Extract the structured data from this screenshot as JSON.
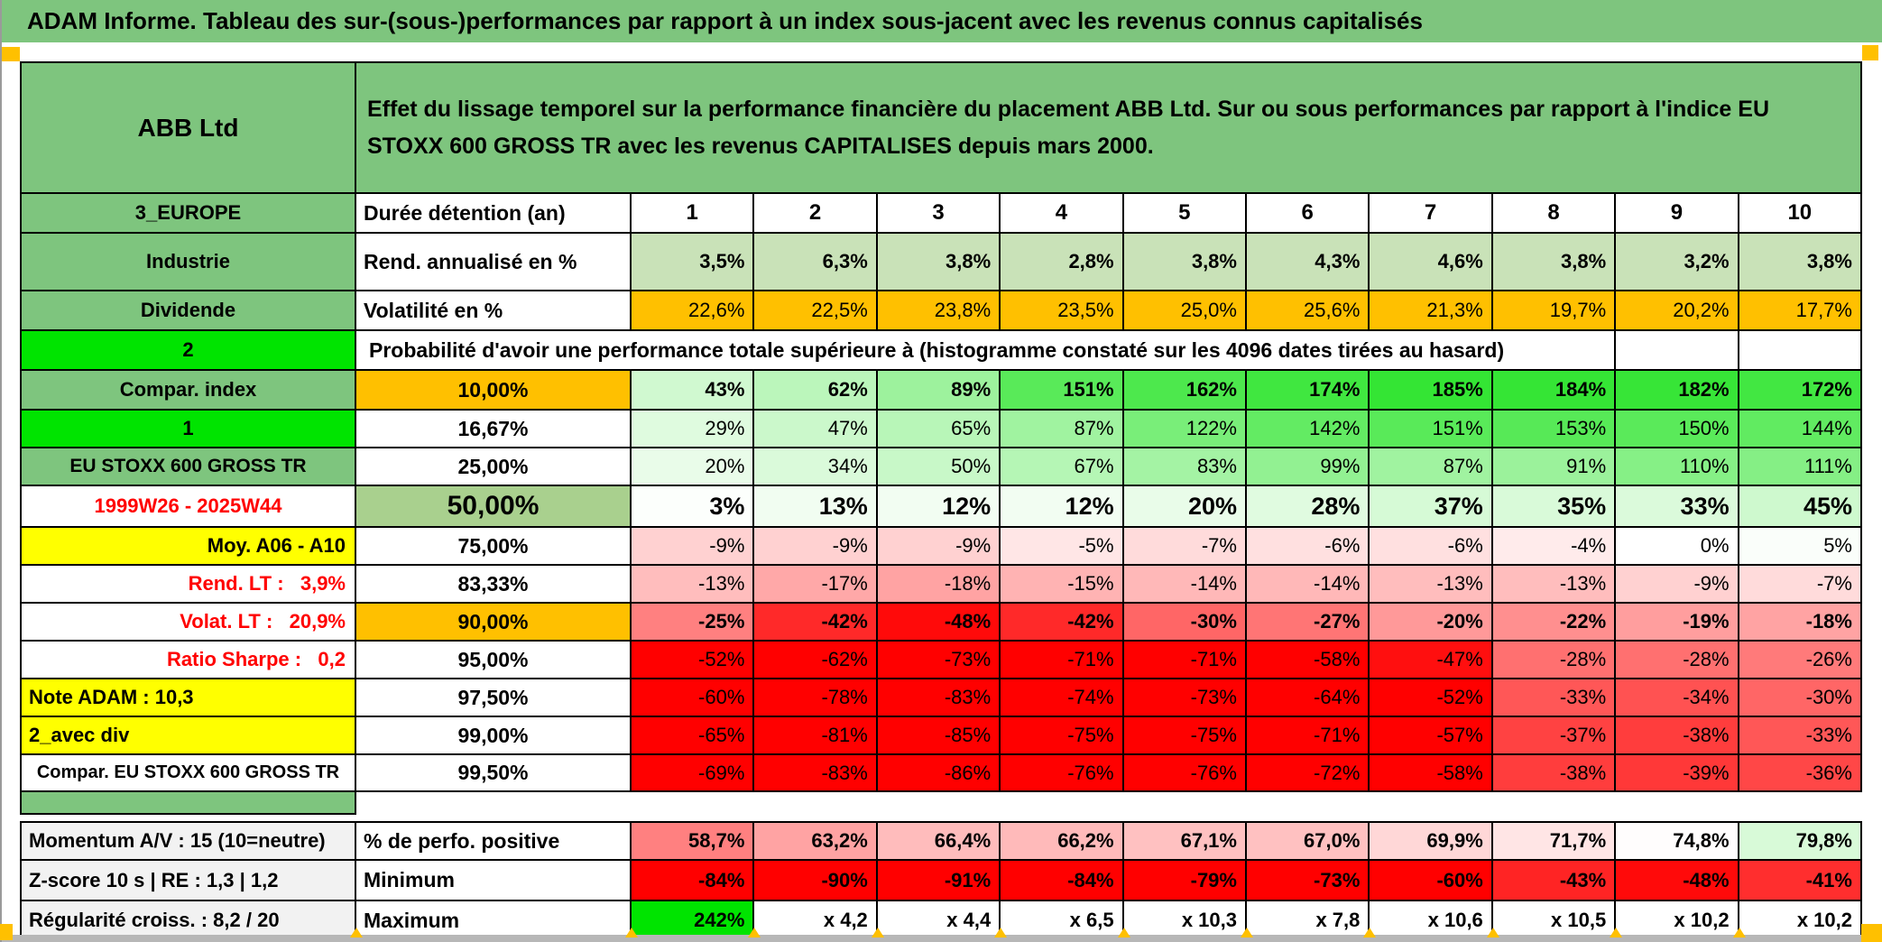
{
  "title": "ADAM Informe. Tableau des sur-(sous-)performances par rapport à un index sous-jacent avec les revenus connus capitalisés",
  "header": {
    "company": "ABB Ltd",
    "description": "Effet du lissage temporel sur la performance financière du placement ABB Ltd. Sur ou sous performances par rapport à l'indice EU STOXX 600 GROSS TR avec les revenus CAPITALISES depuis mars 2000."
  },
  "colors": {
    "title_bar": "#7ec57e",
    "header_green": "#7ec57e",
    "bright_green": "#00e400",
    "orange": "#ffc000",
    "yellow": "#ffff00",
    "sage_green": "#a9d08e",
    "light_green_row": "#c9e2b8",
    "red_text": "#ff0000",
    "gray_label": "#f2f2f2",
    "full_red": "#ff0000",
    "full_green": "#35e135"
  },
  "table": {
    "columns": [
      "1",
      "2",
      "3",
      "4",
      "5",
      "6",
      "7",
      "8",
      "9",
      "10"
    ],
    "rows": [
      {
        "type": "data",
        "left": {
          "text": "3_EUROPE",
          "bg": "#7ec57e"
        },
        "mid": {
          "text": "Durée détention (an)",
          "align": "left"
        },
        "cells": [
          "1",
          "2",
          "3",
          "4",
          "5",
          "6",
          "7",
          "8",
          "9",
          "10"
        ],
        "cell_bg": "#ffffff",
        "bold": true,
        "center": true
      },
      {
        "type": "data",
        "left": {
          "text": "Industrie",
          "bg": "#7ec57e"
        },
        "mid": {
          "text": "Rend. annualisé en %",
          "align": "left"
        },
        "cells": [
          "3,5%",
          "6,3%",
          "3,8%",
          "2,8%",
          "3,8%",
          "4,3%",
          "4,6%",
          "3,8%",
          "3,2%",
          "3,8%"
        ],
        "cell_bg": "#c9e2b8",
        "bold": true
      },
      {
        "type": "data",
        "left": {
          "text": "Dividende",
          "bg": "#7ec57e"
        },
        "mid": {
          "text": "Volatilité en %",
          "align": "left"
        },
        "cells": [
          "22,6%",
          "22,5%",
          "23,8%",
          "23,5%",
          "25,0%",
          "25,6%",
          "21,3%",
          "19,7%",
          "20,2%",
          "17,7%"
        ],
        "cell_bg": "#ffc000"
      },
      {
        "type": "span",
        "left": {
          "text": "2",
          "bg": "#00e400",
          "flag": true
        },
        "span_text": "Probabilité d'avoir une performance totale supérieure à (histogramme constaté sur les 4096 dates tirées au hasard)"
      },
      {
        "type": "data",
        "left": {
          "text": "Compar. index",
          "bg": "#7ec57e"
        },
        "mid": {
          "text": "10,00%",
          "bg": "#ffc000"
        },
        "cells": [
          "43%",
          "62%",
          "89%",
          "151%",
          "162%",
          "174%",
          "185%",
          "184%",
          "182%",
          "172%"
        ],
        "map": "auto",
        "bold": true
      },
      {
        "type": "data",
        "left": {
          "text": "1",
          "bg": "#00e400",
          "flag": true
        },
        "mid": {
          "text": "16,67%"
        },
        "cells": [
          "29%",
          "47%",
          "65%",
          "87%",
          "122%",
          "142%",
          "151%",
          "153%",
          "150%",
          "144%"
        ],
        "map": "auto"
      },
      {
        "type": "data",
        "left": {
          "text": "EU STOXX 600 GROSS TR",
          "bg": "#7ec57e",
          "size": 21
        },
        "mid": {
          "text": "25,00%"
        },
        "cells": [
          "20%",
          "34%",
          "50%",
          "67%",
          "83%",
          "99%",
          "87%",
          "91%",
          "110%",
          "111%"
        ],
        "map": "auto"
      },
      {
        "type": "data",
        "left": {
          "text": "1999W26 - 2025W44",
          "fg": "#ff0000"
        },
        "mid": {
          "text": "50,00%",
          "bg": "#a9d08e",
          "big": true
        },
        "cells": [
          "3%",
          "13%",
          "12%",
          "12%",
          "20%",
          "28%",
          "37%",
          "35%",
          "33%",
          "45%"
        ],
        "map": "auto",
        "bold": true,
        "big": true
      },
      {
        "type": "data",
        "left": {
          "text": "Moy. A06 - A10",
          "bg": "#ffff00",
          "align": "right"
        },
        "mid": {
          "text": "75,00%"
        },
        "cells": [
          "-9%",
          "-9%",
          "-9%",
          "-5%",
          "-7%",
          "-6%",
          "-6%",
          "-4%",
          "0%",
          "5%"
        ],
        "map": "auto"
      },
      {
        "type": "data",
        "left": {
          "text": "Rend. LT :   3,9%",
          "fg": "#ff0000",
          "align": "right"
        },
        "mid": {
          "text": "83,33%"
        },
        "cells": [
          "-13%",
          "-17%",
          "-18%",
          "-15%",
          "-14%",
          "-14%",
          "-13%",
          "-13%",
          "-9%",
          "-7%"
        ],
        "map": "auto"
      },
      {
        "type": "data",
        "left": {
          "text": "Volat. LT :   20,9%",
          "fg": "#ff0000",
          "align": "right"
        },
        "mid": {
          "text": "90,00%",
          "bg": "#ffc000"
        },
        "cells": [
          "-25%",
          "-42%",
          "-48%",
          "-42%",
          "-30%",
          "-27%",
          "-20%",
          "-22%",
          "-19%",
          "-18%"
        ],
        "map": "auto",
        "bold": true
      },
      {
        "type": "data",
        "left": {
          "text": "Ratio Sharpe :   0,2",
          "fg": "#ff0000",
          "align": "right"
        },
        "mid": {
          "text": "95,00%"
        },
        "cells": [
          "-52%",
          "-62%",
          "-73%",
          "-71%",
          "-71%",
          "-58%",
          "-47%",
          "-28%",
          "-28%",
          "-26%"
        ],
        "map": "auto"
      },
      {
        "type": "data",
        "left": {
          "text": "Note ADAM : 10,3",
          "bg": "#ffff00",
          "align": "left"
        },
        "mid": {
          "text": "97,50%"
        },
        "cells": [
          "-60%",
          "-78%",
          "-83%",
          "-74%",
          "-73%",
          "-64%",
          "-52%",
          "-33%",
          "-34%",
          "-30%"
        ],
        "map": "auto"
      },
      {
        "type": "data",
        "left": {
          "text": "2_avec div",
          "bg": "#ffff00",
          "align": "left"
        },
        "mid": {
          "text": "99,00%"
        },
        "cells": [
          "-65%",
          "-81%",
          "-85%",
          "-75%",
          "-75%",
          "-71%",
          "-57%",
          "-37%",
          "-38%",
          "-33%"
        ],
        "map": "auto"
      },
      {
        "type": "data",
        "left": {
          "text": "Compar. EU STOXX 600 GROSS TR",
          "size": 20
        },
        "mid": {
          "text": "99,50%"
        },
        "cells": [
          "-69%",
          "-83%",
          "-86%",
          "-76%",
          "-76%",
          "-72%",
          "-58%",
          "-38%",
          "-39%",
          "-36%"
        ],
        "map": "auto"
      },
      {
        "type": "sep"
      },
      {
        "type": "gap"
      },
      {
        "type": "data",
        "cls": "bt",
        "left": {
          "text": "Momentum A/V : 15 (10=neutre)",
          "bg": "#f2f2f2",
          "align": "left"
        },
        "mid": {
          "text": "% de perfo. positive",
          "align": "left"
        },
        "cells": [
          "58,7%",
          "63,2%",
          "66,4%",
          "66,2%",
          "67,1%",
          "67,0%",
          "69,9%",
          "71,7%",
          "74,8%",
          "79,8%"
        ],
        "map": "center75",
        "bold": true
      },
      {
        "type": "data",
        "left": {
          "text": "Z-score 10 s | RE : 1,3 | 1,2",
          "bg": "#f2f2f2",
          "align": "left"
        },
        "mid": {
          "text": "Minimum",
          "align": "left"
        },
        "cells": [
          "-84%",
          "-90%",
          "-91%",
          "-84%",
          "-79%",
          "-73%",
          "-60%",
          "-43%",
          "-48%",
          "-41%"
        ],
        "map": "auto",
        "bold": true
      },
      {
        "type": "data",
        "left": {
          "text": "Régularité croiss. : 8,2 / 20",
          "bg": "#f2f2f2",
          "align": "left"
        },
        "mid": {
          "text": "Maximum",
          "align": "left"
        },
        "cells": [
          "242%",
          "x 4,2",
          "x 4,4",
          "x 6,5",
          "x 10,3",
          "x 7,8",
          "x 10,6",
          "x 10,5",
          "x 10,2",
          "x 10,2"
        ],
        "cell_colors": [
          "#00e400",
          "#ffffff",
          "#ffffff",
          "#ffffff",
          "#ffffff",
          "#ffffff",
          "#ffffff",
          "#ffffff",
          "#ffffff",
          "#ffffff"
        ],
        "bold": true
      }
    ]
  }
}
